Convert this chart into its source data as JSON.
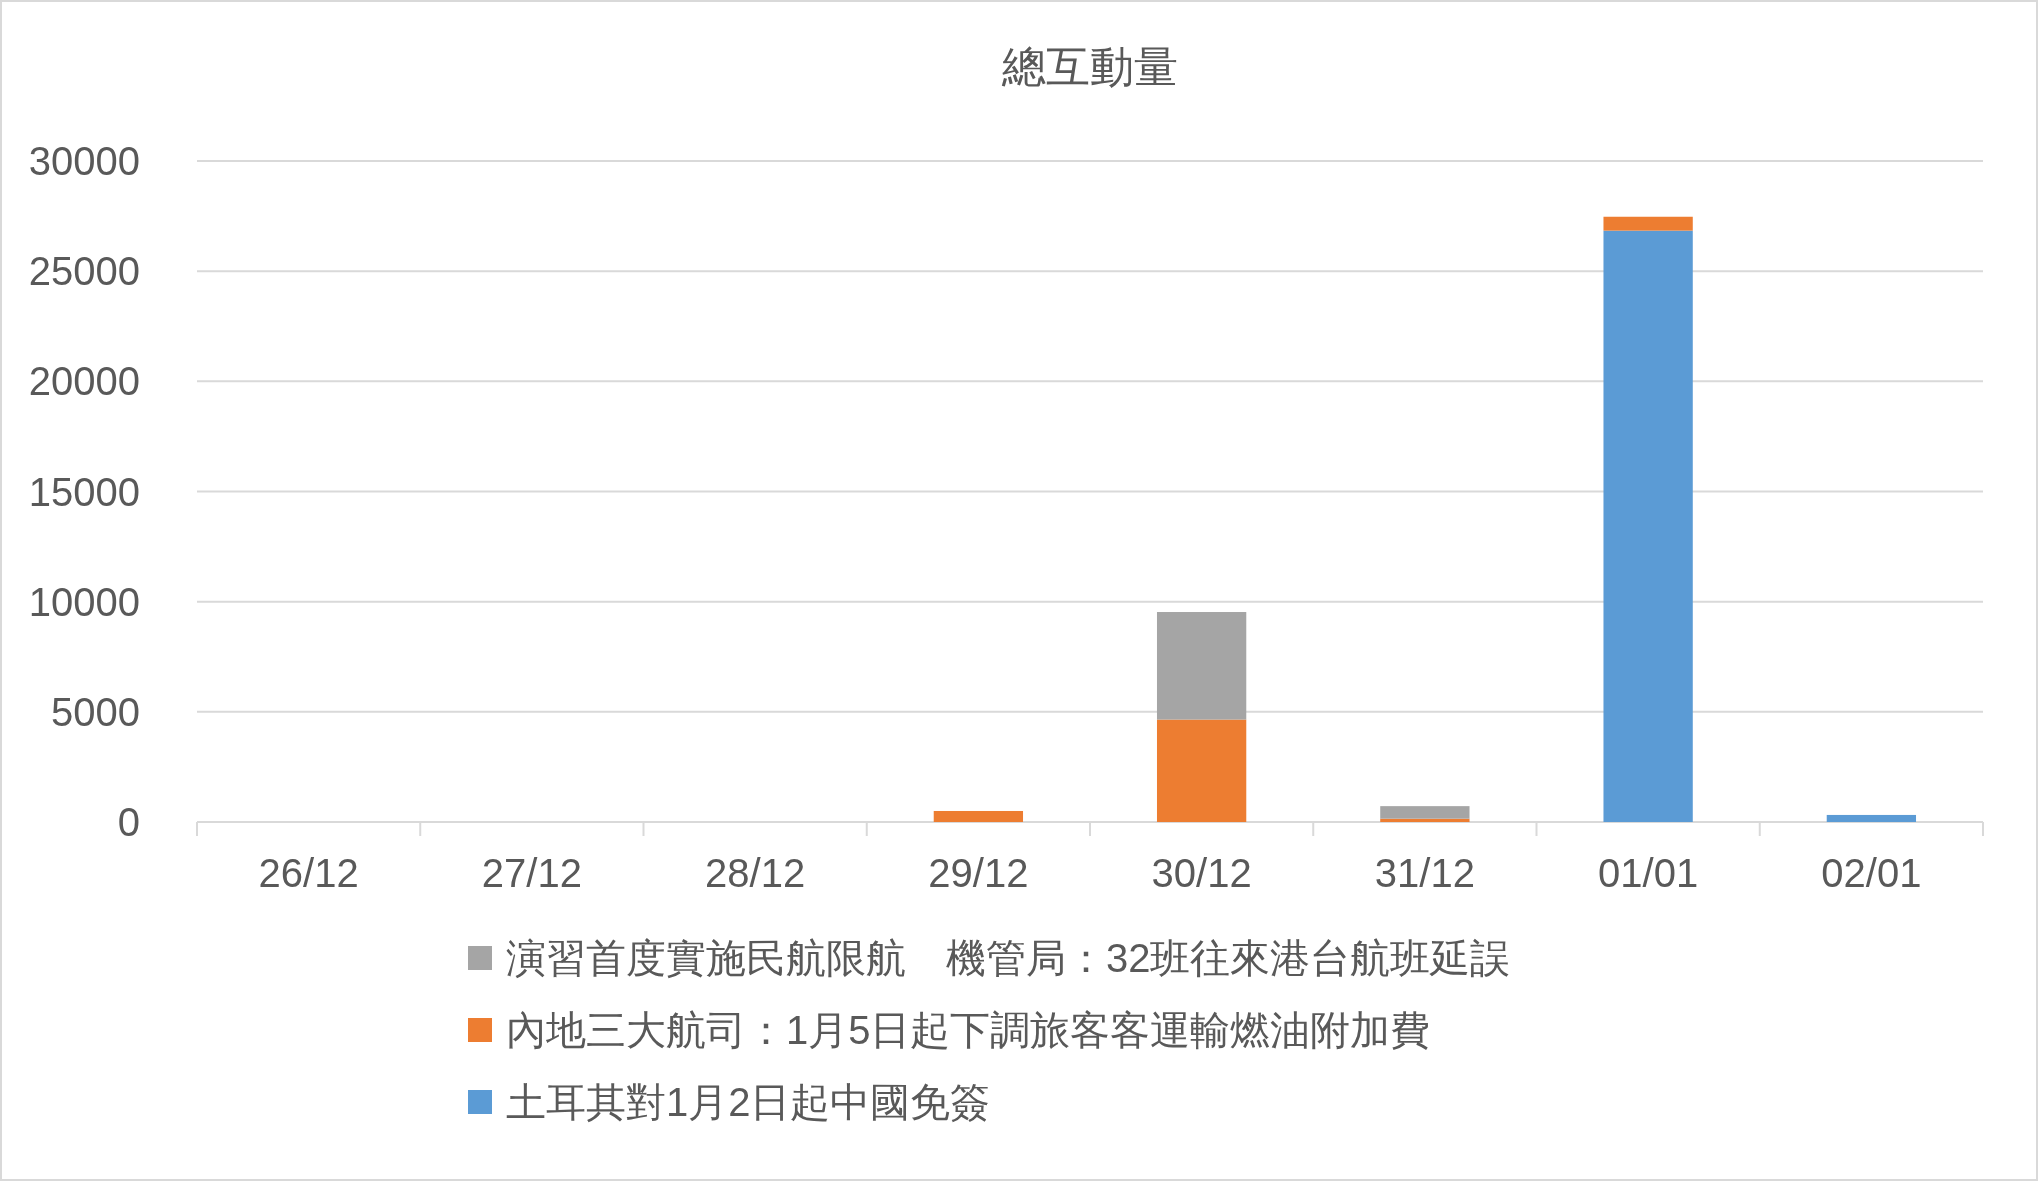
{
  "chart_data": {
    "type": "bar",
    "title": "總互動量",
    "stacked": true,
    "categories": [
      "26/12",
      "27/12",
      "28/12",
      "29/12",
      "30/12",
      "31/12",
      "01/01",
      "02/01"
    ],
    "series": [
      {
        "name": "土耳其對1月2日起中國免簽",
        "color": "#5b9bd5",
        "values": [
          0,
          0,
          0,
          0,
          0,
          0,
          26840,
          320
        ]
      },
      {
        "name": "內地三大航司：1月5日起下調旅客客運輸燃油附加費",
        "color": "#ed7d31",
        "values": [
          0,
          0,
          0,
          500,
          4650,
          150,
          630,
          0
        ]
      },
      {
        "name": "演習首度實施民航限航　機管局：32班往來港台航班延誤",
        "color": "#a5a5a5",
        "values": [
          0,
          0,
          0,
          0,
          4880,
          570,
          0,
          0
        ]
      }
    ],
    "ylim": [
      0,
      30000
    ],
    "yticks": [
      0,
      5000,
      10000,
      15000,
      20000,
      25000,
      30000
    ],
    "grid": "y",
    "legend": "bottom"
  }
}
